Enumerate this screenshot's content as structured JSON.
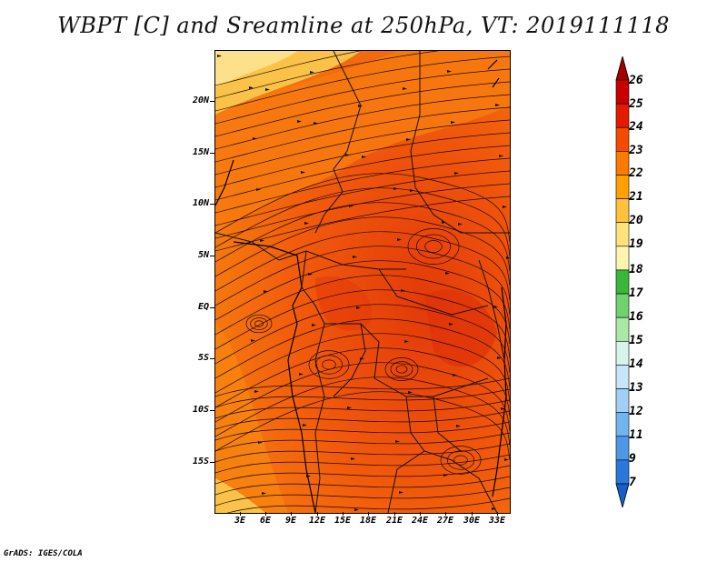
{
  "title": "WBPT [C] and Sreamline at 250hPa, VT: 2019111118",
  "credit": "GrADS: IGES/COLA",
  "lat_labels": [
    "20N",
    "15N",
    "10N",
    "5N",
    "EQ",
    "5S",
    "10S",
    "15S"
  ],
  "lon_labels": [
    "3E",
    "6E",
    "9E",
    "12E",
    "15E",
    "18E",
    "21E",
    "24E",
    "27E",
    "30E",
    "33E"
  ],
  "colorbar": {
    "labels": [
      "26",
      "25",
      "24",
      "23",
      "22",
      "21",
      "20",
      "19",
      "18",
      "17",
      "16",
      "15",
      "14",
      "13",
      "12",
      "11",
      "9",
      "7"
    ],
    "colors": [
      "#a50000",
      "#c80000",
      "#e41a00",
      "#f54a00",
      "#fb7a00",
      "#ff9f00",
      "#ffc23a",
      "#ffe27a",
      "#fff4b0",
      "#39b739",
      "#6fd16f",
      "#a9e8a5",
      "#d8f4ea",
      "#c8e6fa",
      "#9fd0f5",
      "#72b4ee",
      "#4d97e6",
      "#2a78dc",
      "#165fc8"
    ]
  },
  "map_colors": {
    "dominant": "#f05a0a",
    "hot": "#e83a08",
    "warm": "#f7820f",
    "cool": "#fbb040"
  }
}
